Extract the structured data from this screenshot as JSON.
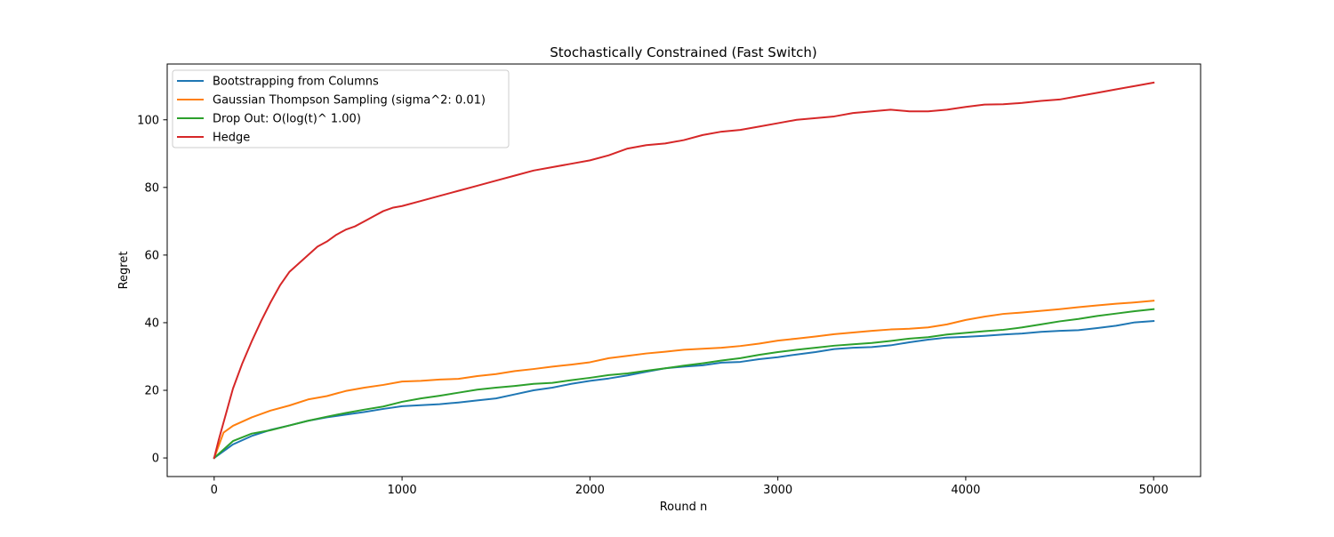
{
  "chart_data": {
    "type": "line",
    "title": "Stochastically Constrained (Fast Switch)",
    "xlabel": "Round n",
    "ylabel": "Regret",
    "xlim": [
      -250,
      5250
    ],
    "ylim": [
      -5.5,
      116.5
    ],
    "xticks": [
      0,
      1000,
      2000,
      3000,
      4000,
      5000
    ],
    "yticks": [
      0,
      20,
      40,
      60,
      80,
      100
    ],
    "grid": false,
    "legend_position": "upper left",
    "series": [
      {
        "name": "Bootstrapping from Columns",
        "color": "#1f77b4",
        "x": [
          0,
          100,
          200,
          300,
          400,
          500,
          600,
          700,
          800,
          900,
          1000,
          1100,
          1200,
          1300,
          1400,
          1500,
          1600,
          1700,
          1800,
          1900,
          2000,
          2100,
          2200,
          2300,
          2400,
          2500,
          2600,
          2700,
          2800,
          2900,
          3000,
          3100,
          3200,
          3300,
          3400,
          3500,
          3600,
          3700,
          3800,
          3900,
          4000,
          4100,
          4200,
          4300,
          4400,
          4500,
          4600,
          4700,
          4800,
          4900,
          5000
        ],
        "y": [
          0,
          4.0,
          6.5,
          8.3,
          9.6,
          11.0,
          12.0,
          12.8,
          13.6,
          14.5,
          15.3,
          15.6,
          15.9,
          16.4,
          17.0,
          17.6,
          18.8,
          20.0,
          20.8,
          21.9,
          22.8,
          23.5,
          24.4,
          25.5,
          26.5,
          27.0,
          27.4,
          28.2,
          28.4,
          29.2,
          29.8,
          30.6,
          31.3,
          32.2,
          32.6,
          32.8,
          33.3,
          34.2,
          35.0,
          35.6,
          35.8,
          36.1,
          36.5,
          36.8,
          37.3,
          37.6,
          37.8,
          38.4,
          39.1,
          40.1,
          40.5
        ]
      },
      {
        "name": "Gaussian Thompson Sampling (sigma^2: 0.01)",
        "color": "#ff7f0e",
        "x": [
          0,
          50,
          100,
          200,
          300,
          400,
          500,
          600,
          700,
          800,
          900,
          1000,
          1100,
          1200,
          1300,
          1400,
          1500,
          1600,
          1700,
          1800,
          1900,
          2000,
          2100,
          2200,
          2300,
          2400,
          2500,
          2600,
          2700,
          2800,
          2900,
          3000,
          3100,
          3200,
          3300,
          3400,
          3500,
          3600,
          3700,
          3800,
          3900,
          4000,
          4100,
          4200,
          4300,
          4400,
          4500,
          4600,
          4700,
          4800,
          4900,
          5000
        ],
        "y": [
          0,
          7.5,
          9.5,
          12.0,
          14.0,
          15.5,
          17.3,
          18.3,
          19.8,
          20.8,
          21.6,
          22.6,
          22.8,
          23.2,
          23.4,
          24.2,
          24.8,
          25.7,
          26.3,
          27.0,
          27.6,
          28.3,
          29.5,
          30.2,
          30.9,
          31.4,
          32.0,
          32.3,
          32.6,
          33.1,
          33.8,
          34.7,
          35.3,
          35.9,
          36.6,
          37.1,
          37.6,
          38.0,
          38.2,
          38.6,
          39.5,
          40.8,
          41.8,
          42.6,
          43.0,
          43.5,
          44.0,
          44.6,
          45.1,
          45.6,
          46.0,
          46.5
        ]
      },
      {
        "name": "Drop Out: O(log(t)^ 1.00)",
        "color": "#2ca02c",
        "x": [
          0,
          100,
          200,
          300,
          400,
          500,
          600,
          700,
          800,
          900,
          1000,
          1100,
          1200,
          1300,
          1400,
          1500,
          1600,
          1700,
          1800,
          1900,
          2000,
          2100,
          2200,
          2300,
          2400,
          2500,
          2600,
          2700,
          2800,
          2900,
          3000,
          3100,
          3200,
          3300,
          3400,
          3500,
          3600,
          3700,
          3800,
          3900,
          4000,
          4100,
          4200,
          4300,
          4400,
          4500,
          4600,
          4700,
          4800,
          4900,
          5000
        ],
        "y": [
          0,
          5.0,
          7.2,
          8.2,
          9.6,
          11.0,
          12.2,
          13.3,
          14.3,
          15.2,
          16.6,
          17.6,
          18.4,
          19.3,
          20.2,
          20.8,
          21.3,
          21.9,
          22.2,
          23.0,
          23.7,
          24.5,
          25.0,
          25.8,
          26.5,
          27.3,
          28.0,
          28.8,
          29.5,
          30.5,
          31.3,
          32.0,
          32.6,
          33.2,
          33.6,
          34.0,
          34.6,
          35.3,
          35.7,
          36.5,
          37.0,
          37.5,
          37.9,
          38.6,
          39.5,
          40.4,
          41.1,
          42.0,
          42.7,
          43.4,
          44.0
        ]
      },
      {
        "name": "Hedge",
        "color": "#d62728",
        "x": [
          0,
          25,
          50,
          75,
          100,
          150,
          200,
          250,
          300,
          350,
          400,
          450,
          500,
          550,
          600,
          650,
          700,
          750,
          800,
          850,
          900,
          950,
          1000,
          1100,
          1200,
          1300,
          1400,
          1500,
          1600,
          1700,
          1800,
          1900,
          2000,
          2100,
          2200,
          2300,
          2400,
          2500,
          2600,
          2700,
          2800,
          2900,
          3000,
          3100,
          3200,
          3300,
          3400,
          3500,
          3600,
          3700,
          3800,
          3900,
          4000,
          4100,
          4200,
          4300,
          4400,
          4500,
          4600,
          4700,
          4800,
          4900,
          5000
        ],
        "y": [
          0,
          5.5,
          10.5,
          15.5,
          20.5,
          28.0,
          34.5,
          40.5,
          46.0,
          51.0,
          55.0,
          57.5,
          60.0,
          62.5,
          64.0,
          66.0,
          67.5,
          68.5,
          70.0,
          71.5,
          73.0,
          74.0,
          74.5,
          76.0,
          77.5,
          79.0,
          80.5,
          82.0,
          83.5,
          85.0,
          86.0,
          87.0,
          88.0,
          89.5,
          91.5,
          92.5,
          93.0,
          94.0,
          95.5,
          96.5,
          97.0,
          98.0,
          99.0,
          100.0,
          100.5,
          101.0,
          102.0,
          102.5,
          103.0,
          102.5,
          102.5,
          103.0,
          103.8,
          104.5,
          104.6,
          105.0,
          105.6,
          106.0,
          107.0,
          108.0,
          109.0,
          110.0,
          111.0
        ]
      }
    ]
  }
}
